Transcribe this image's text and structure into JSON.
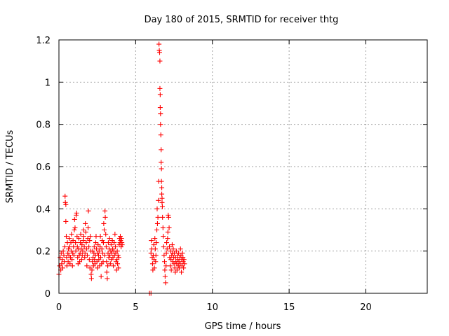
{
  "chart_data": {
    "type": "scatter",
    "title": "Day 180 of 2015, SRMTID for receiver thtg",
    "xlabel": "GPS time / hours",
    "ylabel": "SRMTID / TECUs",
    "xlim": [
      0,
      24
    ],
    "ylim": [
      0,
      1.2
    ],
    "xticks": [
      0,
      5,
      10,
      15,
      20
    ],
    "yticks": [
      0,
      0.2,
      0.4,
      0.6,
      0.8,
      1.0,
      1.2
    ],
    "xtick_labels": [
      "0",
      "5",
      "10",
      "15",
      "20"
    ],
    "ytick_labels": [
      "0",
      "0.2",
      "0.4",
      "0.6",
      "0.8",
      "1",
      "1.2"
    ],
    "grid": true,
    "marker": "+",
    "series": [
      {
        "name": "SRMTID",
        "color": "#ff0000",
        "points": [
          [
            0.0,
            0.09
          ],
          [
            0.05,
            0.13
          ],
          [
            0.08,
            0.17
          ],
          [
            0.12,
            0.11
          ],
          [
            0.15,
            0.19
          ],
          [
            0.18,
            0.14
          ],
          [
            0.22,
            0.16
          ],
          [
            0.25,
            0.12
          ],
          [
            0.28,
            0.2
          ],
          [
            0.32,
            0.18
          ],
          [
            0.35,
            0.15
          ],
          [
            0.38,
            0.22
          ],
          [
            0.4,
            0.46
          ],
          [
            0.42,
            0.43
          ],
          [
            0.45,
            0.42
          ],
          [
            0.45,
            0.34
          ],
          [
            0.48,
            0.27
          ],
          [
            0.5,
            0.17
          ],
          [
            0.52,
            0.13
          ],
          [
            0.55,
            0.24
          ],
          [
            0.58,
            0.19
          ],
          [
            0.6,
            0.15
          ],
          [
            0.62,
            0.21
          ],
          [
            0.65,
            0.18
          ],
          [
            0.68,
            0.26
          ],
          [
            0.7,
            0.22
          ],
          [
            0.72,
            0.14
          ],
          [
            0.75,
            0.17
          ],
          [
            0.78,
            0.24
          ],
          [
            0.8,
            0.2
          ],
          [
            0.82,
            0.28
          ],
          [
            0.85,
            0.16
          ],
          [
            0.88,
            0.13
          ],
          [
            0.9,
            0.19
          ],
          [
            0.92,
            0.25
          ],
          [
            0.95,
            0.22
          ],
          [
            0.98,
            0.18
          ],
          [
            1.0,
            0.3
          ],
          [
            1.02,
            0.35
          ],
          [
            1.05,
            0.31
          ],
          [
            1.08,
            0.24
          ],
          [
            1.1,
            0.2
          ],
          [
            1.12,
            0.37
          ],
          [
            1.15,
            0.38
          ],
          [
            1.18,
            0.27
          ],
          [
            1.2,
            0.22
          ],
          [
            1.22,
            0.17
          ],
          [
            1.25,
            0.14
          ],
          [
            1.28,
            0.21
          ],
          [
            1.3,
            0.26
          ],
          [
            1.32,
            0.18
          ],
          [
            1.35,
            0.15
          ],
          [
            1.38,
            0.19
          ],
          [
            1.4,
            0.24
          ],
          [
            1.42,
            0.28
          ],
          [
            1.45,
            0.21
          ],
          [
            1.48,
            0.16
          ],
          [
            1.5,
            0.23
          ],
          [
            1.52,
            0.18
          ],
          [
            1.55,
            0.2
          ],
          [
            1.58,
            0.25
          ],
          [
            1.6,
            0.3
          ],
          [
            1.62,
            0.27
          ],
          [
            1.65,
            0.22
          ],
          [
            1.68,
            0.17
          ],
          [
            1.7,
            0.19
          ],
          [
            1.72,
            0.33
          ],
          [
            1.75,
            0.29
          ],
          [
            1.78,
            0.24
          ],
          [
            1.8,
            0.21
          ],
          [
            1.82,
            0.13
          ],
          [
            1.85,
            0.18
          ],
          [
            1.88,
            0.26
          ],
          [
            1.9,
            0.31
          ],
          [
            1.92,
            0.39
          ],
          [
            1.95,
            0.22
          ],
          [
            1.98,
            0.16
          ],
          [
            2.0,
            0.25
          ],
          [
            2.02,
            0.12
          ],
          [
            2.05,
            0.27
          ],
          [
            2.08,
            0.2
          ],
          [
            2.1,
            0.09
          ],
          [
            2.12,
            0.07
          ],
          [
            2.15,
            0.11
          ],
          [
            2.18,
            0.15
          ],
          [
            2.2,
            0.2
          ],
          [
            2.22,
            0.17
          ],
          [
            2.25,
            0.13
          ],
          [
            2.28,
            0.19
          ],
          [
            2.3,
            0.22
          ],
          [
            2.32,
            0.16
          ],
          [
            2.35,
            0.14
          ],
          [
            2.38,
            0.18
          ],
          [
            2.4,
            0.24
          ],
          [
            2.42,
            0.27
          ],
          [
            2.45,
            0.21
          ],
          [
            2.48,
            0.15
          ],
          [
            2.5,
            0.12
          ],
          [
            2.52,
            0.19
          ],
          [
            2.55,
            0.23
          ],
          [
            2.58,
            0.18
          ],
          [
            2.6,
            0.16
          ],
          [
            2.62,
            0.2
          ],
          [
            2.65,
            0.13
          ],
          [
            2.68,
            0.22
          ],
          [
            2.7,
            0.27
          ],
          [
            2.72,
            0.17
          ],
          [
            2.75,
            0.08
          ],
          [
            2.78,
            0.14
          ],
          [
            2.8,
            0.21
          ],
          [
            2.82,
            0.25
          ],
          [
            2.85,
            0.19
          ],
          [
            2.88,
            0.15
          ],
          [
            2.9,
            0.24
          ],
          [
            2.92,
            0.33
          ],
          [
            2.95,
            0.3
          ],
          [
            2.98,
            0.18
          ],
          [
            3.0,
            0.39
          ],
          [
            3.02,
            0.36
          ],
          [
            3.05,
            0.28
          ],
          [
            3.08,
            0.22
          ],
          [
            3.1,
            0.15
          ],
          [
            3.12,
            0.1
          ],
          [
            3.15,
            0.07
          ],
          [
            3.18,
            0.13
          ],
          [
            3.2,
            0.19
          ],
          [
            3.22,
            0.24
          ],
          [
            3.25,
            0.17
          ],
          [
            3.28,
            0.21
          ],
          [
            3.3,
            0.26
          ],
          [
            3.32,
            0.18
          ],
          [
            3.35,
            0.14
          ],
          [
            3.38,
            0.2
          ],
          [
            3.4,
            0.23
          ],
          [
            3.42,
            0.16
          ],
          [
            3.45,
            0.19
          ],
          [
            3.48,
            0.25
          ],
          [
            3.5,
            0.21
          ],
          [
            3.52,
            0.17
          ],
          [
            3.55,
            0.13
          ],
          [
            3.58,
            0.2
          ],
          [
            3.6,
            0.24
          ],
          [
            3.62,
            0.18
          ],
          [
            3.65,
            0.28
          ],
          [
            3.68,
            0.22
          ],
          [
            3.7,
            0.19
          ],
          [
            3.72,
            0.15
          ],
          [
            3.75,
            0.11
          ],
          [
            3.78,
            0.16
          ],
          [
            3.8,
            0.2
          ],
          [
            3.82,
            0.14
          ],
          [
            3.85,
            0.18
          ],
          [
            3.88,
            0.12
          ],
          [
            3.9,
            0.17
          ],
          [
            3.92,
            0.23
          ],
          [
            3.95,
            0.26
          ],
          [
            3.98,
            0.24
          ],
          [
            4.0,
            0.27
          ],
          [
            4.02,
            0.25
          ],
          [
            4.05,
            0.22
          ],
          [
            4.08,
            0.26
          ],
          [
            4.1,
            0.24
          ],
          [
            4.12,
            0.23
          ],
          [
            5.9,
            0.0
          ],
          [
            6.0,
            0.0
          ],
          [
            6.0,
            0.19
          ],
          [
            6.02,
            0.25
          ],
          [
            6.05,
            0.21
          ],
          [
            6.08,
            0.17
          ],
          [
            6.1,
            0.14
          ],
          [
            6.12,
            0.11
          ],
          [
            6.15,
            0.18
          ],
          [
            6.18,
            0.23
          ],
          [
            6.2,
            0.16
          ],
          [
            6.22,
            0.12
          ],
          [
            6.25,
            0.26
          ],
          [
            6.28,
            0.21
          ],
          [
            6.3,
            0.15
          ],
          [
            6.32,
            0.18
          ],
          [
            6.35,
            0.24
          ],
          [
            6.38,
            0.3
          ],
          [
            6.4,
            0.4
          ],
          [
            6.42,
            0.33
          ],
          [
            6.45,
            0.36
          ],
          [
            6.48,
            0.44
          ],
          [
            6.5,
            0.53
          ],
          [
            6.52,
            1.18
          ],
          [
            6.54,
            1.15
          ],
          [
            6.56,
            1.14
          ],
          [
            6.58,
            1.1
          ],
          [
            6.58,
            0.97
          ],
          [
            6.6,
            0.94
          ],
          [
            6.6,
            0.88
          ],
          [
            6.62,
            0.85
          ],
          [
            6.62,
            0.8
          ],
          [
            6.64,
            0.75
          ],
          [
            6.66,
            0.68
          ],
          [
            6.66,
            0.62
          ],
          [
            6.68,
            0.59
          ],
          [
            6.68,
            0.53
          ],
          [
            6.7,
            0.5
          ],
          [
            6.7,
            0.47
          ],
          [
            6.72,
            0.45
          ],
          [
            6.72,
            0.43
          ],
          [
            6.74,
            0.41
          ],
          [
            6.75,
            0.36
          ],
          [
            6.78,
            0.31
          ],
          [
            6.8,
            0.27
          ],
          [
            6.82,
            0.22
          ],
          [
            6.85,
            0.18
          ],
          [
            6.88,
            0.15
          ],
          [
            6.9,
            0.11
          ],
          [
            6.92,
            0.08
          ],
          [
            6.95,
            0.05
          ],
          [
            6.98,
            0.13
          ],
          [
            7.0,
            0.19
          ],
          [
            7.02,
            0.24
          ],
          [
            7.05,
            0.21
          ],
          [
            7.08,
            0.26
          ],
          [
            7.1,
            0.29
          ],
          [
            7.12,
            0.37
          ],
          [
            7.15,
            0.36
          ],
          [
            7.18,
            0.31
          ],
          [
            7.2,
            0.22
          ],
          [
            7.22,
            0.17
          ],
          [
            7.25,
            0.13
          ],
          [
            7.28,
            0.2
          ],
          [
            7.3,
            0.16
          ],
          [
            7.32,
            0.11
          ],
          [
            7.35,
            0.18
          ],
          [
            7.38,
            0.23
          ],
          [
            7.4,
            0.19
          ],
          [
            7.42,
            0.15
          ],
          [
            7.45,
            0.21
          ],
          [
            7.48,
            0.17
          ],
          [
            7.5,
            0.14
          ],
          [
            7.52,
            0.19
          ],
          [
            7.55,
            0.12
          ],
          [
            7.58,
            0.1
          ],
          [
            7.6,
            0.17
          ],
          [
            7.62,
            0.15
          ],
          [
            7.65,
            0.2
          ],
          [
            7.68,
            0.14
          ],
          [
            7.7,
            0.11
          ],
          [
            7.72,
            0.18
          ],
          [
            7.75,
            0.16
          ],
          [
            7.78,
            0.13
          ],
          [
            7.8,
            0.19
          ],
          [
            7.82,
            0.15
          ],
          [
            7.85,
            0.12
          ],
          [
            7.88,
            0.17
          ],
          [
            7.9,
            0.14
          ],
          [
            7.92,
            0.21
          ],
          [
            7.95,
            0.18
          ],
          [
            7.98,
            0.1
          ],
          [
            8.0,
            0.16
          ],
          [
            8.02,
            0.13
          ],
          [
            8.05,
            0.19
          ],
          [
            8.08,
            0.17
          ],
          [
            8.1,
            0.15
          ],
          [
            8.12,
            0.12
          ],
          [
            8.15,
            0.16
          ],
          [
            8.18,
            0.14
          ]
        ]
      }
    ]
  }
}
